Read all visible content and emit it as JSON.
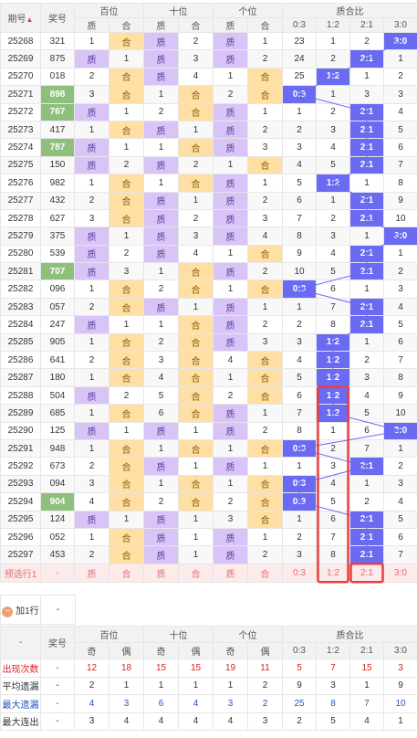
{
  "header": {
    "period": "期号",
    "prize": "奖号",
    "groups": [
      "百位",
      "十位",
      "个位",
      "质合比"
    ],
    "sub": [
      "质",
      "合",
      "质",
      "合",
      "质",
      "合"
    ],
    "ratios": [
      "0:3",
      "1:2",
      "2:1",
      "3:0"
    ]
  },
  "rows": [
    {
      "p": "25268",
      "n": "321",
      "g": false,
      "b": [
        "1"
      ],
      "bs": "he",
      "t": [
        "2"
      ],
      "ts": "zhi",
      "u": [
        "1"
      ],
      "us": "zhi",
      "r": [
        "23",
        "1",
        "2",
        "3:0"
      ]
    },
    {
      "p": "25269",
      "n": "875",
      "g": false,
      "b": [
        "1"
      ],
      "bs": "zhi",
      "t": [
        "3"
      ],
      "ts": "zhi",
      "u": [
        "2"
      ],
      "us": "zhi",
      "r": [
        "24",
        "2",
        "2:1",
        "1"
      ]
    },
    {
      "p": "25270",
      "n": "018",
      "g": false,
      "b": [
        "2"
      ],
      "bs": "he",
      "t": [
        "4"
      ],
      "ts": "zhi",
      "u": [
        "1"
      ],
      "us": "he",
      "r": [
        "25",
        "1:2",
        "1",
        "2"
      ]
    },
    {
      "p": "25271",
      "n": "898",
      "g": true,
      "b": [
        "3"
      ],
      "bs": "he",
      "t": [
        "1"
      ],
      "ts": "he",
      "u": [
        "2"
      ],
      "us": "he",
      "r": [
        "0:3",
        "1",
        "3",
        "3"
      ]
    },
    {
      "p": "25272",
      "n": "767",
      "g": true,
      "b": [
        "1"
      ],
      "bs": "zhi",
      "t": [
        "2"
      ],
      "ts": "he",
      "u": [
        "1"
      ],
      "us": "zhi",
      "r": [
        "1",
        "2",
        "2:1",
        "4"
      ]
    },
    {
      "p": "25273",
      "n": "417",
      "g": false,
      "b": [
        "1"
      ],
      "bs": "he",
      "t": [
        "1"
      ],
      "ts": "zhi",
      "u": [
        "2"
      ],
      "us": "zhi",
      "r": [
        "2",
        "3",
        "2:1",
        "5"
      ]
    },
    {
      "p": "25274",
      "n": "787",
      "g": true,
      "b": [
        "1"
      ],
      "bs": "zhi",
      "t": [
        "1"
      ],
      "ts": "he",
      "u": [
        "3"
      ],
      "us": "zhi",
      "r": [
        "3",
        "4",
        "2:1",
        "6"
      ]
    },
    {
      "p": "25275",
      "n": "150",
      "g": false,
      "b": [
        "2"
      ],
      "bs": "zhi",
      "t": [
        "2"
      ],
      "ts": "zhi",
      "u": [
        "1"
      ],
      "us": "he",
      "r": [
        "4",
        "5",
        "2:1",
        "7"
      ]
    },
    {
      "p": "25276",
      "n": "982",
      "g": false,
      "b": [
        "1"
      ],
      "bs": "he",
      "t": [
        "1"
      ],
      "ts": "he",
      "u": [
        "1"
      ],
      "us": "zhi",
      "r": [
        "5",
        "1:2",
        "1",
        "8"
      ]
    },
    {
      "p": "25277",
      "n": "432",
      "g": false,
      "b": [
        "2"
      ],
      "bs": "he",
      "t": [
        "1"
      ],
      "ts": "zhi",
      "u": [
        "2"
      ],
      "us": "zhi",
      "r": [
        "6",
        "1",
        "2:1",
        "9"
      ]
    },
    {
      "p": "25278",
      "n": "627",
      "g": false,
      "b": [
        "3"
      ],
      "bs": "he",
      "t": [
        "2"
      ],
      "ts": "zhi",
      "u": [
        "3"
      ],
      "us": "zhi",
      "r": [
        "7",
        "2",
        "2:1",
        "10"
      ]
    },
    {
      "p": "25279",
      "n": "375",
      "g": false,
      "b": [
        "1"
      ],
      "bs": "zhi",
      "t": [
        "3"
      ],
      "ts": "zhi",
      "u": [
        "4"
      ],
      "us": "zhi",
      "r": [
        "8",
        "3",
        "1",
        "3:0"
      ]
    },
    {
      "p": "25280",
      "n": "539",
      "g": false,
      "b": [
        "2"
      ],
      "bs": "zhi",
      "t": [
        "4"
      ],
      "ts": "zhi",
      "u": [
        "1"
      ],
      "us": "he",
      "r": [
        "9",
        "4",
        "2:1",
        "1"
      ]
    },
    {
      "p": "25281",
      "n": "707",
      "g": true,
      "b": [
        "3"
      ],
      "bs": "zhi",
      "t": [
        "1"
      ],
      "ts": "he",
      "u": [
        "2"
      ],
      "us": "zhi",
      "r": [
        "10",
        "5",
        "2:1",
        "2"
      ]
    },
    {
      "p": "25282",
      "n": "096",
      "g": false,
      "b": [
        "1"
      ],
      "bs": "he",
      "t": [
        "2"
      ],
      "ts": "he",
      "u": [
        "1"
      ],
      "us": "he",
      "r": [
        "0:3",
        "6",
        "1",
        "3"
      ]
    },
    {
      "p": "25283",
      "n": "057",
      "g": false,
      "b": [
        "2"
      ],
      "bs": "he",
      "t": [
        "1"
      ],
      "ts": "zhi",
      "u": [
        "1"
      ],
      "us": "zhi",
      "r": [
        "1",
        "7",
        "2:1",
        "4"
      ]
    },
    {
      "p": "25284",
      "n": "247",
      "g": false,
      "b": [
        "1"
      ],
      "bs": "zhi",
      "t": [
        "1"
      ],
      "ts": "he",
      "u": [
        "2"
      ],
      "us": "zhi",
      "r": [
        "2",
        "8",
        "2:1",
        "5"
      ]
    },
    {
      "p": "25285",
      "n": "905",
      "g": false,
      "b": [
        "1"
      ],
      "bs": "he",
      "t": [
        "2"
      ],
      "ts": "he",
      "u": [
        "3"
      ],
      "us": "zhi",
      "r": [
        "3",
        "1:2",
        "1",
        "6"
      ]
    },
    {
      "p": "25286",
      "n": "641",
      "g": false,
      "b": [
        "2"
      ],
      "bs": "he",
      "t": [
        "3"
      ],
      "ts": "he",
      "u": [
        "4"
      ],
      "us": "he",
      "r": [
        "4",
        "1:2",
        "2",
        "7"
      ]
    },
    {
      "p": "25287",
      "n": "180",
      "g": false,
      "b": [
        "1"
      ],
      "bs": "he",
      "t": [
        "4"
      ],
      "ts": "he",
      "u": [
        "1"
      ],
      "us": "he",
      "r": [
        "5",
        "1:2",
        "3",
        "8"
      ]
    },
    {
      "p": "25288",
      "n": "504",
      "g": false,
      "b": [
        "2"
      ],
      "bs": "zhi",
      "t": [
        "5"
      ],
      "ts": "he",
      "u": [
        "2"
      ],
      "us": "he",
      "r": [
        "6",
        "1:2",
        "4",
        "9"
      ]
    },
    {
      "p": "25289",
      "n": "685",
      "g": false,
      "b": [
        "1"
      ],
      "bs": "he",
      "t": [
        "6"
      ],
      "ts": "he",
      "u": [
        "1"
      ],
      "us": "zhi",
      "r": [
        "7",
        "1:2",
        "5",
        "10"
      ]
    },
    {
      "p": "25290",
      "n": "125",
      "g": false,
      "b": [
        "1"
      ],
      "bs": "zhi",
      "t": [
        "1"
      ],
      "ts": "zhi",
      "u": [
        "2"
      ],
      "us": "zhi",
      "r": [
        "8",
        "1",
        "6",
        "3:0"
      ]
    },
    {
      "p": "25291",
      "n": "948",
      "g": false,
      "b": [
        "1"
      ],
      "bs": "he",
      "t": [
        "1"
      ],
      "ts": "he",
      "u": [
        "1"
      ],
      "us": "he",
      "r": [
        "0:3",
        "2",
        "7",
        "1"
      ]
    },
    {
      "p": "25292",
      "n": "673",
      "g": false,
      "b": [
        "2"
      ],
      "bs": "he",
      "t": [
        "1"
      ],
      "ts": "zhi",
      "u": [
        "1"
      ],
      "us": "zhi",
      "r": [
        "1",
        "3",
        "2:1",
        "2"
      ]
    },
    {
      "p": "25293",
      "n": "094",
      "g": false,
      "b": [
        "3"
      ],
      "bs": "he",
      "t": [
        "1"
      ],
      "ts": "he",
      "u": [
        "1"
      ],
      "us": "he",
      "r": [
        "0:3",
        "4",
        "1",
        "3"
      ]
    },
    {
      "p": "25294",
      "n": "904",
      "g": true,
      "b": [
        "4"
      ],
      "bs": "he",
      "t": [
        "2"
      ],
      "ts": "he",
      "u": [
        "2"
      ],
      "us": "he",
      "r": [
        "0:3",
        "5",
        "2",
        "4"
      ]
    },
    {
      "p": "25295",
      "n": "124",
      "g": false,
      "b": [
        "1"
      ],
      "bs": "zhi",
      "t": [
        "1"
      ],
      "ts": "zhi",
      "u": [
        "3"
      ],
      "us": "he",
      "r": [
        "1",
        "6",
        "2:1",
        "5"
      ]
    },
    {
      "p": "25296",
      "n": "052",
      "g": false,
      "b": [
        "1"
      ],
      "bs": "he",
      "t": [
        "1"
      ],
      "ts": "zhi",
      "u": [
        "1"
      ],
      "us": "zhi",
      "r": [
        "2",
        "7",
        "2:1",
        "6"
      ]
    },
    {
      "p": "25297",
      "n": "453",
      "g": false,
      "b": [
        "2"
      ],
      "bs": "he",
      "t": [
        "1"
      ],
      "ts": "zhi",
      "u": [
        "2"
      ],
      "us": "zhi",
      "r": [
        "3",
        "8",
        "2:1",
        "7"
      ]
    }
  ],
  "predict": {
    "label": "预选行1",
    "prize": "-",
    "cells": [
      "质",
      "合",
      "质",
      "合",
      "质",
      "合"
    ],
    "ratios": [
      "0:3",
      "1:2",
      "2:1",
      "3:0"
    ]
  },
  "add_row": {
    "label": "加1行",
    "prize": "-"
  },
  "stats": {
    "header": {
      "dash": "-",
      "prize": "奖号",
      "groups": [
        "百位",
        "十位",
        "个位",
        "质合比"
      ],
      "sub": [
        "奇",
        "偶",
        "奇",
        "偶",
        "奇",
        "偶"
      ],
      "ratios": [
        "0:3",
        "1:2",
        "2:1",
        "3:0"
      ]
    },
    "rows": [
      {
        "label": "出现次数",
        "cls": "red",
        "prize": "-",
        "vals": [
          "12",
          "18",
          "15",
          "15",
          "19",
          "11",
          "5",
          "7",
          "15",
          "3"
        ]
      },
      {
        "label": "平均遗漏",
        "cls": "",
        "prize": "-",
        "vals": [
          "2",
          "1",
          "1",
          "1",
          "1",
          "2",
          "9",
          "3",
          "1",
          "9"
        ]
      },
      {
        "label": "最大遗漏",
        "cls": "blue",
        "prize": "-",
        "vals": [
          "4",
          "3",
          "6",
          "4",
          "3",
          "2",
          "25",
          "8",
          "7",
          "10"
        ]
      },
      {
        "label": "最大连出",
        "cls": "",
        "prize": "-",
        "vals": [
          "3",
          "4",
          "4",
          "4",
          "4",
          "3",
          "2",
          "5",
          "4",
          "1"
        ]
      }
    ]
  }
}
